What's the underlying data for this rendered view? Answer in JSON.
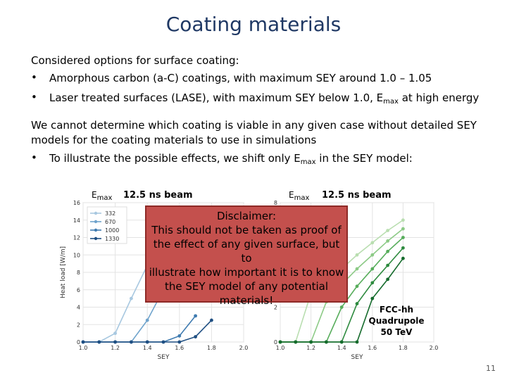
{
  "title": "Coating materials",
  "intro": "Considered options for surface coating:",
  "bullets": {
    "b1": "Amorphous carbon (a-C) coatings, with maximum SEY around 1.0 – 1.05",
    "b2_pre": "Laser treated surfaces (LASE), with maximum SEY below 1.0, E",
    "b2_sub": "max",
    "b2_post": " at high energy",
    "symbol": "•"
  },
  "para": {
    "line1": "We cannot determine which coating is viable in any given case without detailed SEY",
    "line2": "models for the coating materials to use in simulations",
    "b3_pre": "To illustrate the possible effects, we shift only E",
    "b3_sub": "max",
    "b3_post": " in the SEY model:"
  },
  "left_chart": {
    "emax_main": "E",
    "emax_sub": "max",
    "beam": "12.5 ns beam"
  },
  "right_chart": {
    "emax_main": "E",
    "emax_sub": "max",
    "beam": "12.5 ns beam"
  },
  "disclaimer": {
    "line1": "Disclaimer:",
    "line2": "This should not be taken as proof of",
    "line3": "the effect of any given surface, but to",
    "line4": "illustrate how important it is to know",
    "line5": "the SEY model of any potential",
    "line6": "materials!"
  },
  "fcc": {
    "line1": "FCC-hh",
    "line2": "Quadrupole",
    "line3": "50 TeV"
  },
  "page_number": "11",
  "chart_data": [
    {
      "type": "line",
      "xlabel": "SEY",
      "ylabel": "Heat load [W/m]",
      "xlim": [
        1.0,
        2.0
      ],
      "ylim": [
        0,
        16
      ],
      "xticks": [
        "1.0",
        "1.2",
        "1.4",
        "1.6",
        "1.8",
        "2.0"
      ],
      "yticks": [
        "0",
        "2",
        "4",
        "6",
        "8",
        "10",
        "12",
        "14",
        "16"
      ],
      "grid": true,
      "legend": "top-left",
      "series": [
        {
          "name": "332",
          "color": "#a8c8e0",
          "x": [
            1.0,
            1.1,
            1.2,
            1.3,
            1.4
          ],
          "y": [
            0,
            0,
            1.0,
            5.0,
            8.8
          ]
        },
        {
          "name": "670",
          "color": "#6fa3cc",
          "x": [
            1.0,
            1.1,
            1.2,
            1.3,
            1.4,
            1.5
          ],
          "y": [
            0,
            0,
            0,
            0,
            2.5,
            6.0
          ]
        },
        {
          "name": "1000",
          "color": "#3f7bb0",
          "x": [
            1.0,
            1.1,
            1.2,
            1.3,
            1.4,
            1.5,
            1.6,
            1.7
          ],
          "y": [
            0,
            0,
            0,
            0,
            0,
            0,
            0.7,
            3.0
          ]
        },
        {
          "name": "1330",
          "color": "#1f4f82",
          "x": [
            1.0,
            1.1,
            1.2,
            1.3,
            1.4,
            1.5,
            1.6,
            1.7,
            1.8
          ],
          "y": [
            0,
            0,
            0,
            0,
            0,
            0,
            0,
            0.6,
            2.5
          ]
        }
      ]
    },
    {
      "type": "line",
      "xlabel": "SEY",
      "ylabel": "",
      "xlim": [
        1.0,
        2.0
      ],
      "ylim": [
        0,
        8
      ],
      "xticks": [
        "1.0",
        "1.2",
        "1.4",
        "1.6",
        "1.8",
        "2.0"
      ],
      "yticks": [
        "0",
        "2",
        "4",
        "6",
        "8"
      ],
      "grid": true,
      "series": [
        {
          "color": "#b9deb0",
          "x": [
            1.0,
            1.1,
            1.2,
            1.3,
            1.4,
            1.5,
            1.6,
            1.7,
            1.8
          ],
          "y": [
            0,
            0,
            2.8,
            3.6,
            4.2,
            5.0,
            5.7,
            6.4,
            7.0
          ]
        },
        {
          "color": "#8cca86",
          "x": [
            1.0,
            1.1,
            1.2,
            1.3,
            1.4,
            1.5,
            1.6,
            1.7,
            1.8
          ],
          "y": [
            0,
            0,
            0,
            2.3,
            3.3,
            4.2,
            5.0,
            5.8,
            6.5
          ]
        },
        {
          "color": "#57ad5b",
          "x": [
            1.0,
            1.1,
            1.2,
            1.3,
            1.4,
            1.5,
            1.6,
            1.7,
            1.8
          ],
          "y": [
            0,
            0,
            0,
            0,
            2.0,
            3.2,
            4.2,
            5.2,
            6.0
          ]
        },
        {
          "color": "#2d8a3e",
          "x": [
            1.0,
            1.1,
            1.2,
            1.3,
            1.4,
            1.5,
            1.6,
            1.7,
            1.8
          ],
          "y": [
            0,
            0,
            0,
            0,
            0,
            2.2,
            3.4,
            4.4,
            5.4
          ]
        },
        {
          "color": "#156b2c",
          "x": [
            1.0,
            1.1,
            1.2,
            1.3,
            1.4,
            1.5,
            1.6,
            1.7,
            1.8
          ],
          "y": [
            0,
            0,
            0,
            0,
            0,
            0,
            2.5,
            3.6,
            4.8
          ]
        }
      ]
    }
  ]
}
